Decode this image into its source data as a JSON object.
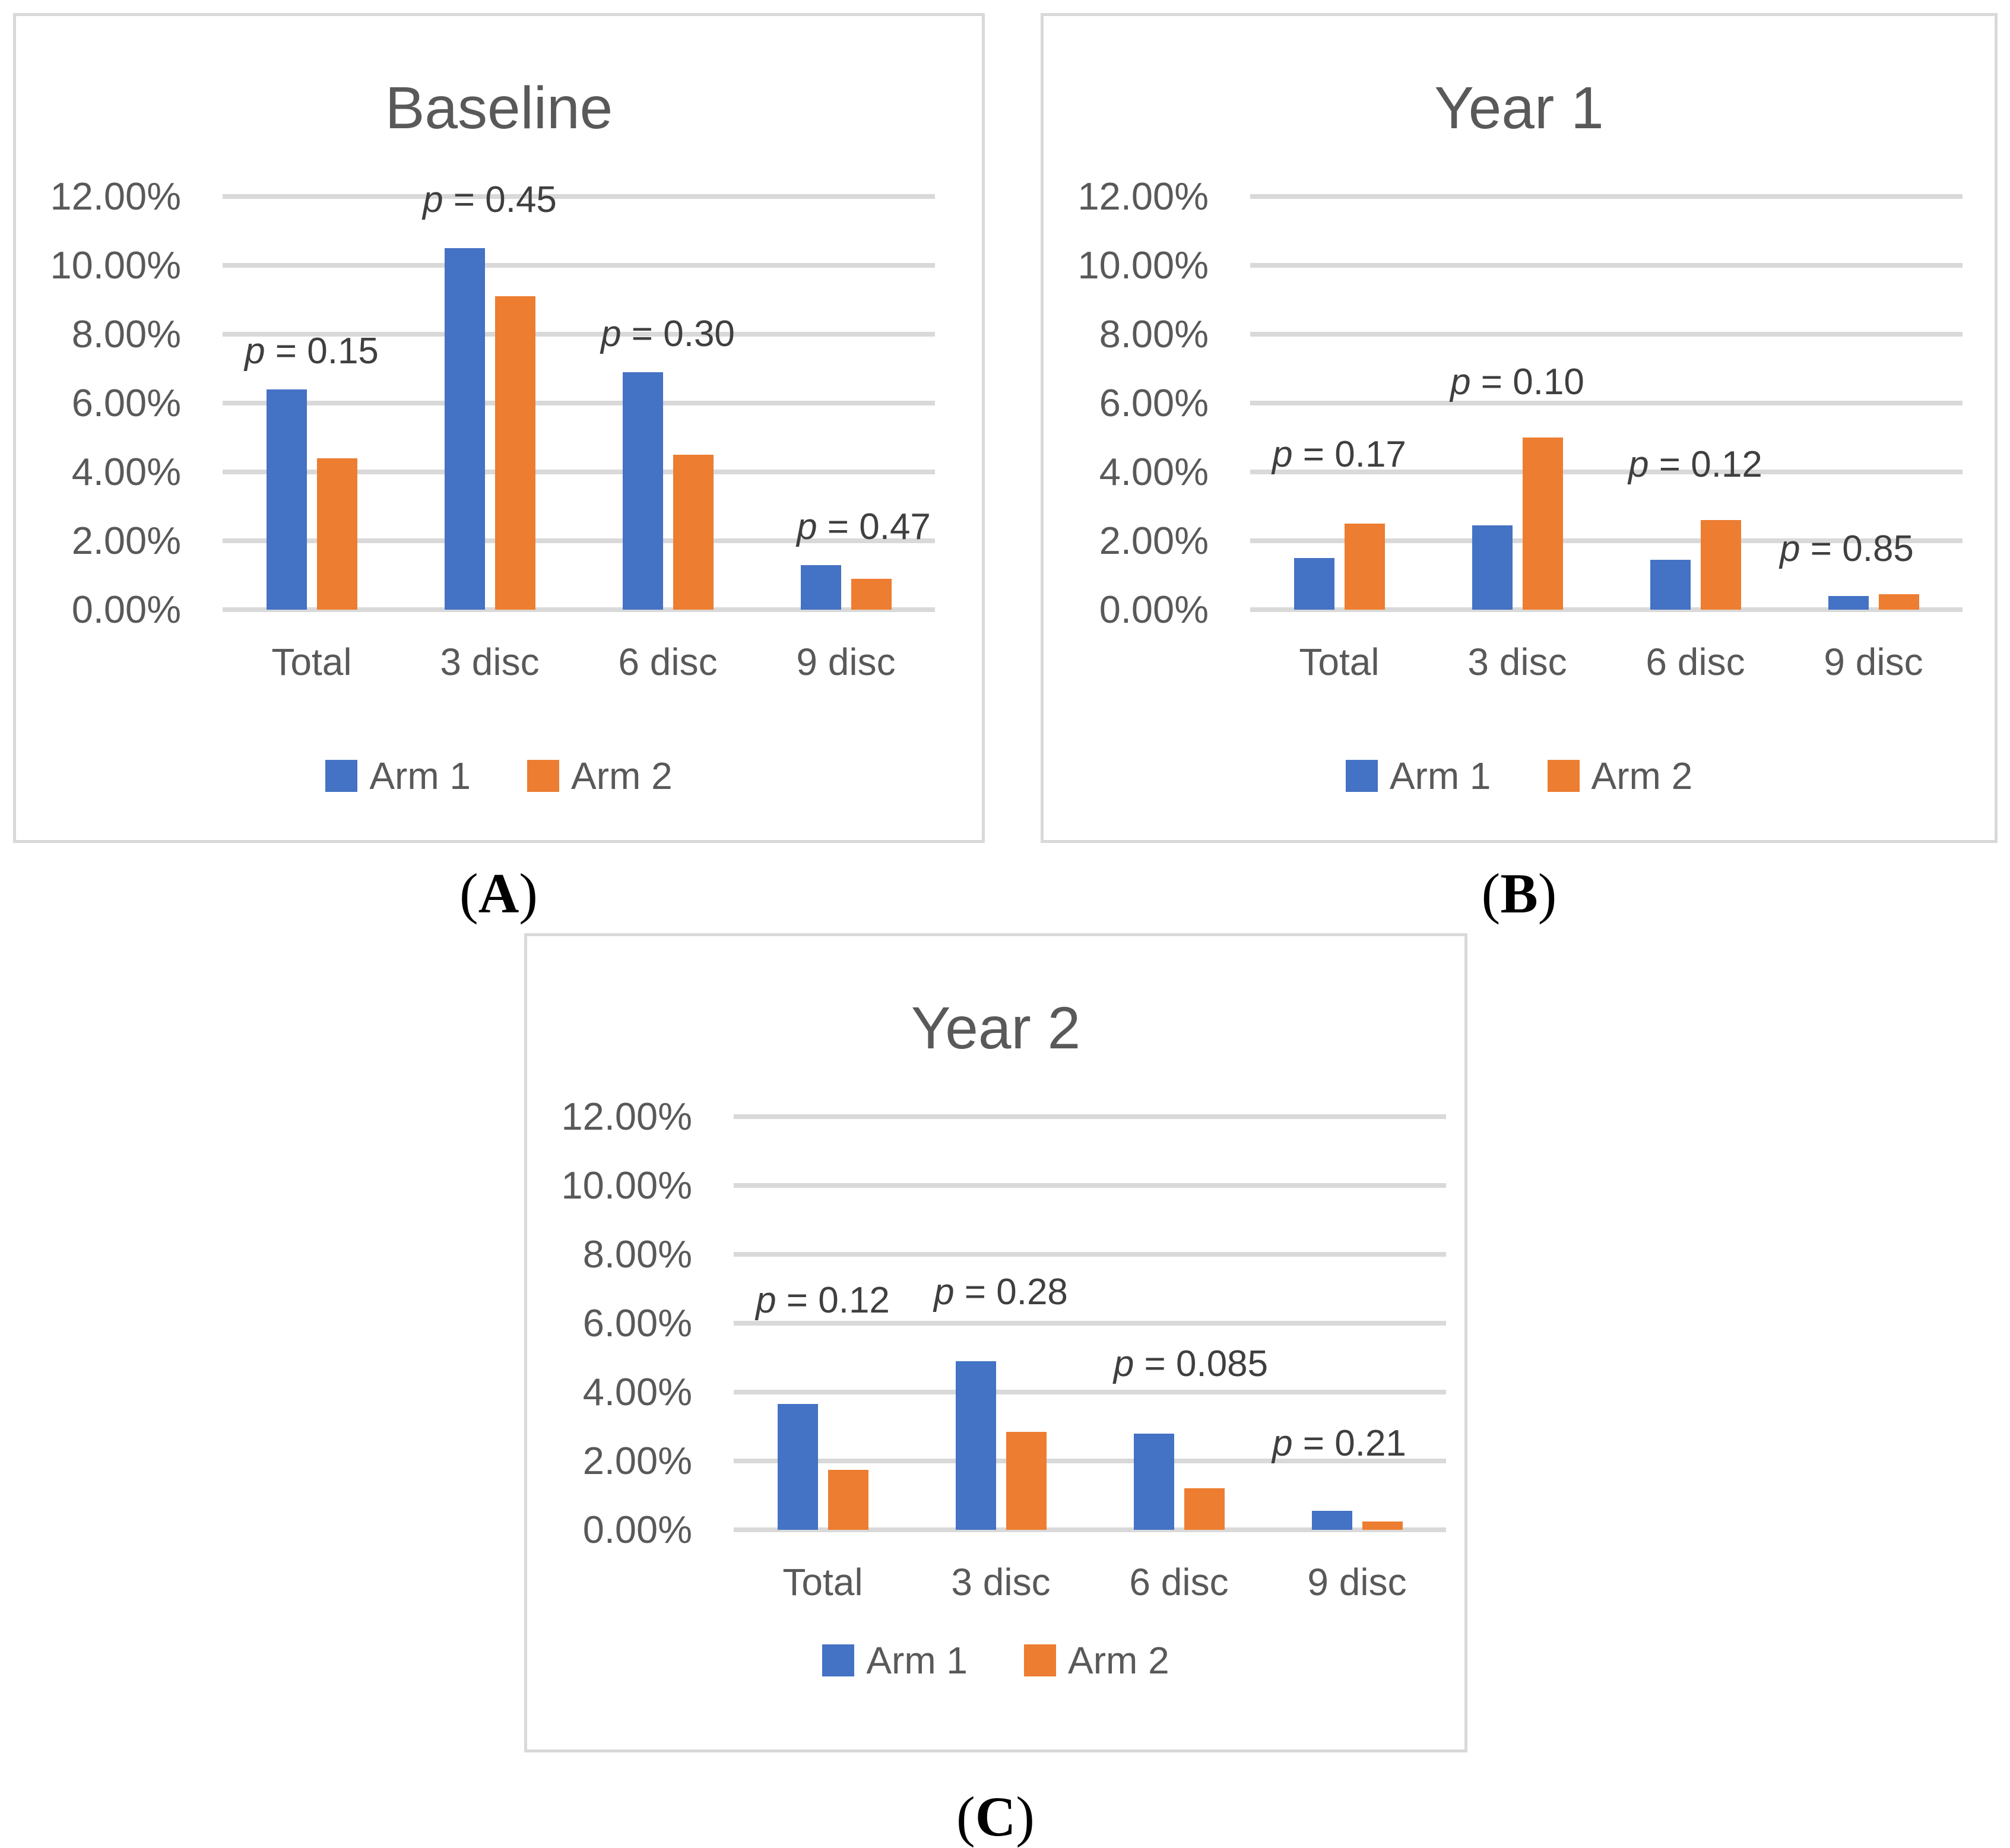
{
  "figure": {
    "panel_labels": [
      "(A)",
      "(B)",
      "(C)"
    ],
    "colors": {
      "arm1": "#4472C4",
      "arm2": "#ED7D31",
      "gridline": "#D9D9D9",
      "panel_border": "#D9D9D9",
      "axis_text": "#595959",
      "title_text": "#595959",
      "p_text": "#3F3F3F"
    }
  },
  "chart_data": [
    {
      "type": "bar",
      "title": "Baseline",
      "categories": [
        "Total",
        "3 disc",
        "6 disc",
        "9 disc"
      ],
      "series": [
        {
          "name": "Arm 1",
          "values": [
            6.4,
            10.5,
            6.9,
            1.3
          ]
        },
        {
          "name": "Arm 2",
          "values": [
            4.4,
            9.1,
            4.5,
            0.9
          ]
        }
      ],
      "p_labels": [
        "p = 0.15",
        "p = 0.45",
        "p = 0.30",
        "p = 0.47"
      ],
      "p_label_heights_pct": [
        6.9,
        11.3,
        7.4,
        1.8
      ],
      "p_label_x_offsets": [
        0,
        0,
        0,
        30
      ],
      "y_ticks": [
        "0.00%",
        "2.00%",
        "4.00%",
        "6.00%",
        "8.00%",
        "10.00%",
        "12.00%"
      ],
      "ylim": [
        0,
        12
      ],
      "grid": true,
      "legend_position": "bottom",
      "legend_entries": [
        "Arm 1",
        "Arm 2"
      ]
    },
    {
      "type": "bar",
      "title": "Year 1",
      "categories": [
        "Total",
        "3 disc",
        "6 disc",
        "9 disc"
      ],
      "series": [
        {
          "name": "Arm 1",
          "values": [
            1.5,
            2.45,
            1.45,
            0.4
          ]
        },
        {
          "name": "Arm 2",
          "values": [
            2.5,
            5.0,
            2.6,
            0.45
          ]
        }
      ],
      "p_labels": [
        "p = 0.17",
        "p = 0.10",
        "p = 0.12",
        "p = 0.85"
      ],
      "p_label_heights_pct": [
        3.9,
        6.0,
        3.6,
        1.15
      ],
      "p_label_x_offsets": [
        0,
        0,
        0,
        -45
      ],
      "y_ticks": [
        "0.00%",
        "2.00%",
        "4.00%",
        "6.00%",
        "8.00%",
        "10.00%",
        "12.00%"
      ],
      "ylim": [
        0,
        12
      ],
      "grid": true,
      "legend_position": "bottom",
      "legend_entries": [
        "Arm 1",
        "Arm 2"
      ]
    },
    {
      "type": "bar",
      "title": "Year 2",
      "categories": [
        "Total",
        "3 disc",
        "6 disc",
        "9 disc"
      ],
      "series": [
        {
          "name": "Arm 1",
          "values": [
            3.65,
            4.9,
            2.8,
            0.55
          ]
        },
        {
          "name": "Arm 2",
          "values": [
            1.75,
            2.85,
            1.2,
            0.25
          ]
        }
      ],
      "p_labels": [
        "p = 0.12",
        "p = 0.28",
        "p = 0.085",
        "p = 0.21"
      ],
      "p_label_heights_pct": [
        6.05,
        6.3,
        4.2,
        1.9
      ],
      "p_label_x_offsets": [
        0,
        0,
        20,
        -30
      ],
      "y_ticks": [
        "0.00%",
        "2.00%",
        "4.00%",
        "6.00%",
        "8.00%",
        "10.00%",
        "12.00%"
      ],
      "ylim": [
        0,
        12
      ],
      "grid": true,
      "legend_position": "bottom",
      "legend_entries": [
        "Arm 1",
        "Arm 2"
      ]
    }
  ]
}
